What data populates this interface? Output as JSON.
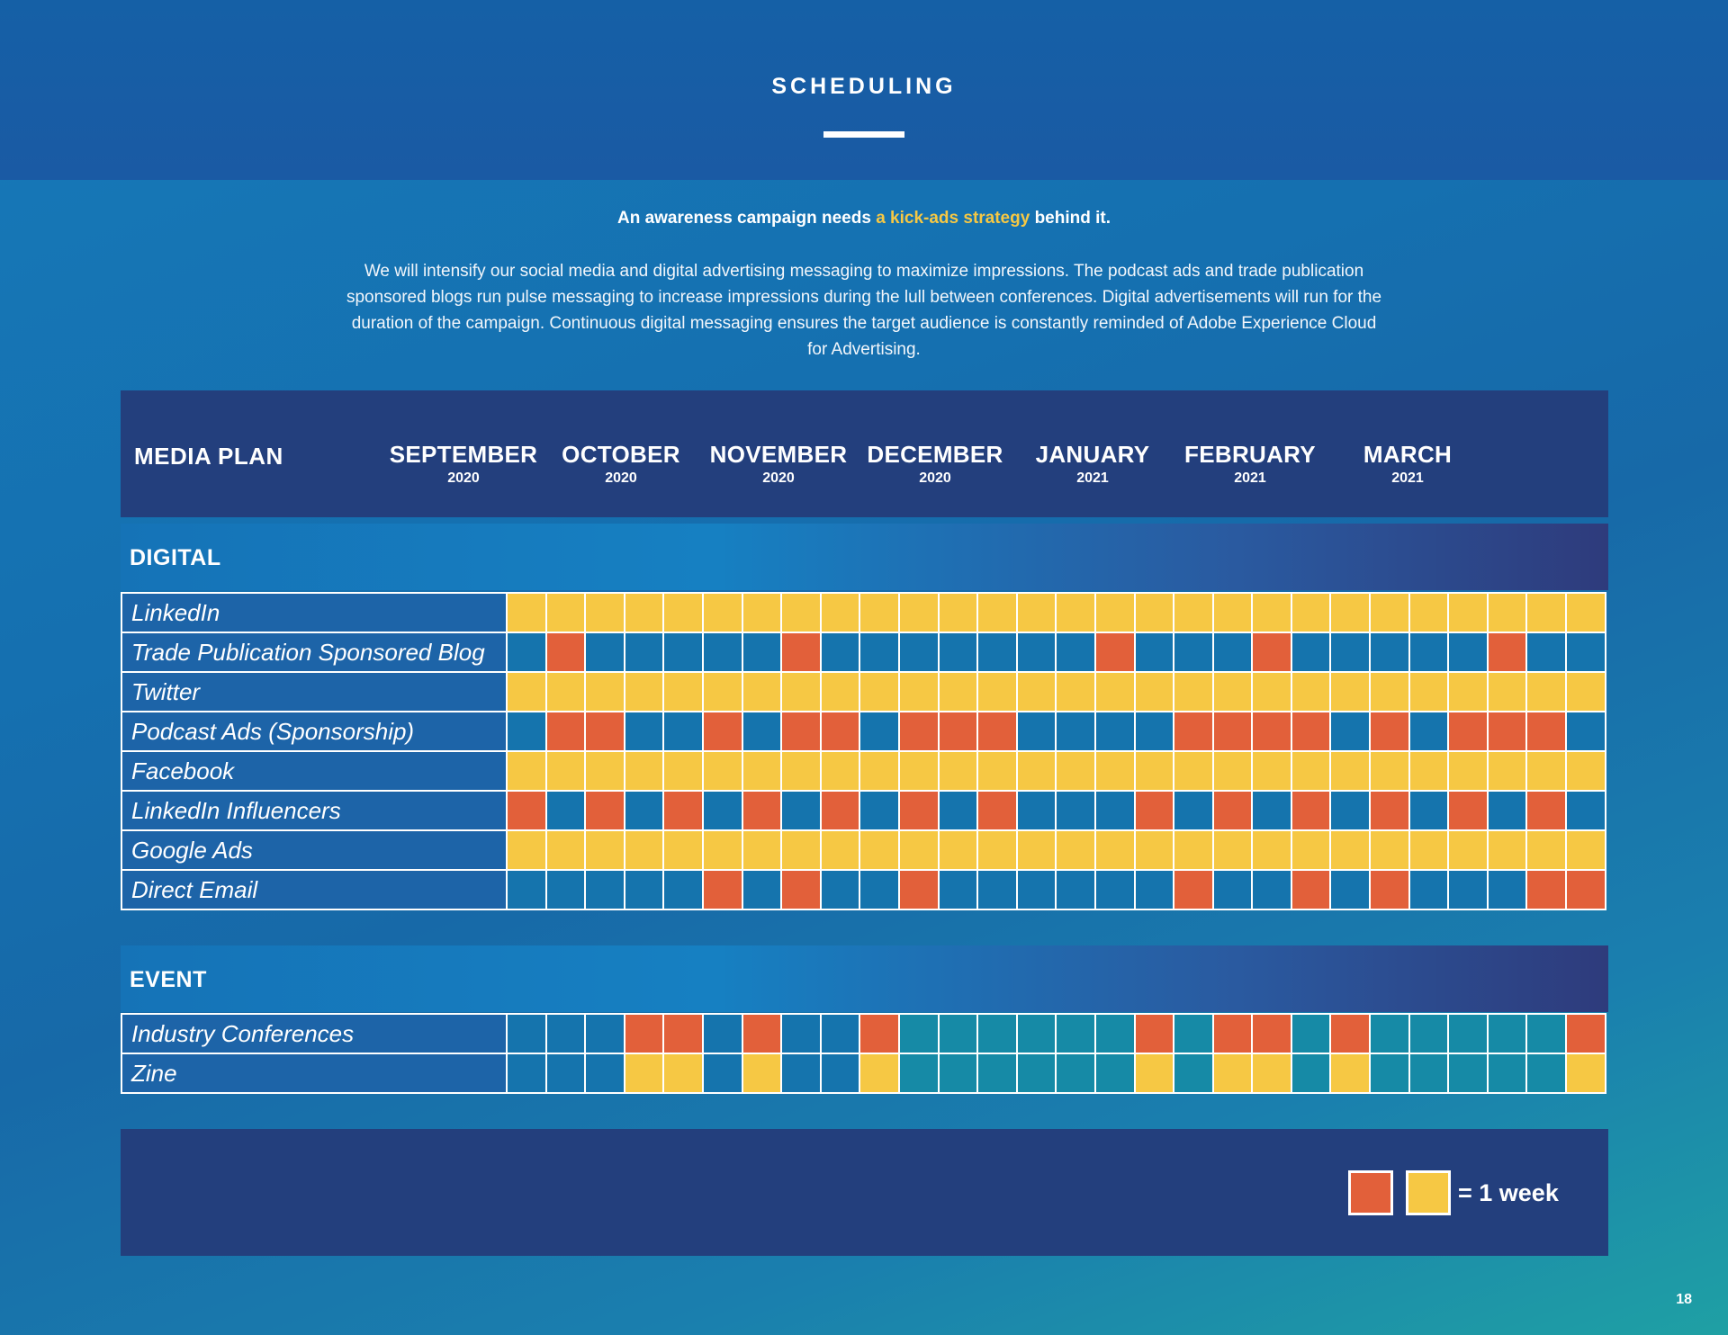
{
  "page_title": "SCHEDULING",
  "lead": {
    "before": "An awareness campaign needs ",
    "highlight": "a kick-ads strategy",
    "after": " behind it."
  },
  "body": "We will intensify our social media and digital advertising messaging to maximize impressions. The podcast ads and trade publication sponsored blogs run pulse messaging to increase impressions during the lull between conferences. Digital advertisements will run for the duration of the campaign. Continuous digital messaging ensures the target audience is constantly reminded of Adobe Experience Cloud for Advertising.",
  "plan_title": "MEDIA PLAN",
  "months": [
    {
      "name": "SEPTEMBER",
      "year": "2020"
    },
    {
      "name": "OCTOBER",
      "year": "2020"
    },
    {
      "name": "NOVEMBER",
      "year": "2020"
    },
    {
      "name": "DECEMBER",
      "year": "2020"
    },
    {
      "name": "JANUARY",
      "year": "2021"
    },
    {
      "name": "FEBRUARY",
      "year": "2021"
    },
    {
      "name": "MARCH",
      "year": "2021"
    }
  ],
  "colors": {
    "yellow": "#f6c844",
    "orange": "#e2603a",
    "blue": "#1574ad",
    "teal": "#168aa6"
  },
  "sections": [
    {
      "title": "DIGITAL",
      "rows": [
        {
          "label": "LinkedIn",
          "weeks": "YYYYYYYYYYYYYYYYYYYYYYYYYYYY"
        },
        {
          "label": "Trade Publication Sponsored Blog",
          "weeks": "BOBBBBBOBBBBBBBOBBBOBBBBBOBB"
        },
        {
          "label": "Twitter",
          "weeks": "YYYYYYYYYYYYYYYYYYYYYYYYYYYY"
        },
        {
          "label": "Podcast Ads (Sponsorship)",
          "weeks": "BOOBBOBOOBOOOBBBBOOOOBOBOOOB"
        },
        {
          "label": "Facebook",
          "weeks": "YYYYYYYYYYYYYYYYYYYYYYYYYYYY"
        },
        {
          "label": "LinkedIn Influencers",
          "weeks": "OBOBOBOBOBOBOBBBOBOBOBOBOBOB"
        },
        {
          "label": "Google Ads",
          "weeks": "YYYYYYYYYYYYYYYYYYYYYYYYYYYY"
        },
        {
          "label": "Direct Email",
          "weeks": "BBBBBOBOBBOBBBBBBOBBOBOBBBOO"
        }
      ]
    },
    {
      "title": "EVENT",
      "rows": [
        {
          "label": "Industry Conferences",
          "weeks": "BBBOOBOBBOTTTTTTOTOOTOTTTTTO"
        },
        {
          "label": "Zine",
          "weeks": "BBBYYBYBBYTTTTTTYTYYTYTTTTTY"
        }
      ]
    }
  ],
  "legend": {
    "text": "= 1 week",
    "swatches": [
      "orange",
      "yellow"
    ]
  },
  "page_number": "18"
}
